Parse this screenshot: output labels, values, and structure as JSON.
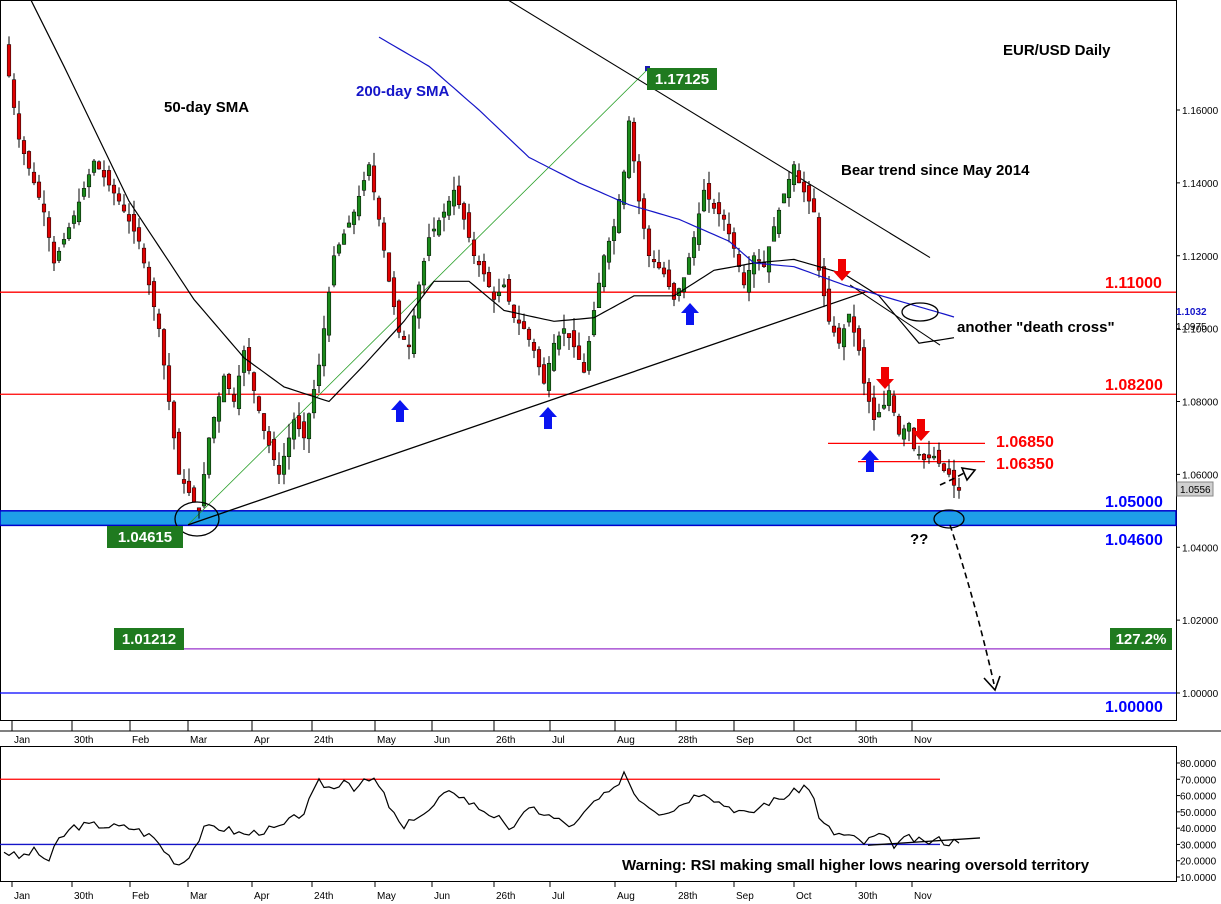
{
  "chart_data": [
    {
      "type": "candlestick",
      "title": "EUR/USD Daily",
      "annotations": {
        "sma50": "50-day SMA",
        "sma200": "200-day SMA",
        "bear_trend": "Bear trend since May 2014",
        "death_cross": "another \"death cross\"",
        "question": "??",
        "high_label": "1.17125",
        "low_label": "1.04615",
        "fib_left_label": "1.01212",
        "fib_right_label": "127.2%"
      },
      "levels": [
        {
          "value": 1.11,
          "label": "1.11000",
          "color": "#ff0000"
        },
        {
          "value": 1.082,
          "label": "1.08200",
          "color": "#ff0000"
        },
        {
          "value": 1.0685,
          "label": "1.06850",
          "color": "#ff0000"
        },
        {
          "value": 1.0635,
          "label": "1.06350",
          "color": "#ff0000"
        },
        {
          "value": 1.05,
          "label": "1.05000",
          "color": "#0000ff"
        },
        {
          "value": 1.046,
          "label": "1.04600",
          "color": "#0000ff"
        },
        {
          "value": 1.01212,
          "label": "",
          "color": "#9933cc"
        },
        {
          "value": 1.0,
          "label": "1.00000",
          "color": "#0000ff"
        }
      ],
      "price_labels": {
        "sma200_value": "1.1032",
        "sma50_value": "1.0975",
        "last_price": "1.0556"
      },
      "y_ticks": [
        "1.16000",
        "1.14000",
        "1.12000",
        "1.10000",
        "1.08000",
        "1.06000",
        "1.04000",
        "1.02000",
        "1.00000"
      ],
      "x_ticks": [
        "Jan",
        "30th",
        "Feb",
        "Mar",
        "Apr",
        "24th",
        "May",
        "Jun",
        "26th",
        "Jul",
        "Aug",
        "28th",
        "Sep",
        "Oct",
        "30th",
        "Nov"
      ],
      "ylim": [
        0.995,
        1.18
      ],
      "close_series_anchors": [
        [
          0,
          1.178
        ],
        [
          3,
          1.152
        ],
        [
          8,
          1.132
        ],
        [
          10,
          1.118
        ],
        [
          14,
          1.131
        ],
        [
          18,
          1.146
        ],
        [
          23,
          1.135
        ],
        [
          27,
          1.124
        ],
        [
          31,
          1.1
        ],
        [
          35,
          1.06
        ],
        [
          39,
          1.05
        ],
        [
          41,
          1.07
        ],
        [
          44,
          1.087
        ],
        [
          46,
          1.08
        ],
        [
          48,
          1.094
        ],
        [
          50,
          1.083
        ],
        [
          52,
          1.072
        ],
        [
          55,
          1.06
        ],
        [
          58,
          1.075
        ],
        [
          60,
          1.07
        ],
        [
          63,
          1.09
        ],
        [
          66,
          1.12
        ],
        [
          70,
          1.132
        ],
        [
          73,
          1.145
        ],
        [
          75,
          1.13
        ],
        [
          77,
          1.113
        ],
        [
          79,
          1.099
        ],
        [
          81,
          1.095
        ],
        [
          83,
          1.112
        ],
        [
          85,
          1.125
        ],
        [
          88,
          1.132
        ],
        [
          90,
          1.138
        ],
        [
          92,
          1.13
        ],
        [
          94,
          1.12
        ],
        [
          96,
          1.115
        ],
        [
          98,
          1.108
        ],
        [
          100,
          1.112
        ],
        [
          102,
          1.103
        ],
        [
          104,
          1.1
        ],
        [
          106,
          1.094
        ],
        [
          108,
          1.085
        ],
        [
          110,
          1.096
        ],
        [
          112,
          1.1
        ],
        [
          114,
          1.095
        ],
        [
          116,
          1.088
        ],
        [
          118,
          1.105
        ],
        [
          120,
          1.12
        ],
        [
          122,
          1.128
        ],
        [
          124,
          1.143
        ],
        [
          125,
          1.157
        ],
        [
          127,
          1.135
        ],
        [
          129,
          1.12
        ],
        [
          132,
          1.115
        ],
        [
          134,
          1.108
        ],
        [
          136,
          1.114
        ],
        [
          138,
          1.125
        ],
        [
          140,
          1.138
        ],
        [
          142,
          1.133
        ],
        [
          144,
          1.13
        ],
        [
          146,
          1.122
        ],
        [
          148,
          1.112
        ],
        [
          150,
          1.12
        ],
        [
          152,
          1.117
        ],
        [
          154,
          1.128
        ],
        [
          156,
          1.137
        ],
        [
          158,
          1.145
        ],
        [
          159,
          1.14
        ],
        [
          161,
          1.135
        ],
        [
          162,
          1.132
        ],
        [
          163,
          1.116
        ],
        [
          165,
          1.102
        ],
        [
          167,
          1.096
        ],
        [
          169,
          1.104
        ],
        [
          171,
          1.094
        ],
        [
          172,
          1.085
        ],
        [
          174,
          1.075
        ],
        [
          176,
          1.079
        ],
        [
          177,
          1.083
        ],
        [
          179,
          1.071
        ],
        [
          181,
          1.074
        ],
        [
          182,
          1.067
        ],
        [
          184,
          1.064
        ],
        [
          186,
          1.065
        ],
        [
          188,
          1.061
        ],
        [
          189,
          1.06
        ],
        [
          190,
          1.057
        ],
        [
          191,
          1.0556
        ]
      ],
      "sma50_anchors": [
        [
          0,
          1.205
        ],
        [
          12,
          1.172
        ],
        [
          25,
          1.135
        ],
        [
          38,
          1.108
        ],
        [
          48,
          1.092
        ],
        [
          56,
          1.084
        ],
        [
          65,
          1.08
        ],
        [
          72,
          1.09
        ],
        [
          80,
          1.102
        ],
        [
          86,
          1.113
        ],
        [
          93,
          1.113
        ],
        [
          100,
          1.105
        ],
        [
          110,
          1.102
        ],
        [
          118,
          1.103
        ],
        [
          126,
          1.109
        ],
        [
          134,
          1.109
        ],
        [
          142,
          1.116
        ],
        [
          150,
          1.118
        ],
        [
          158,
          1.119
        ],
        [
          163,
          1.117
        ],
        [
          168,
          1.115
        ],
        [
          175,
          1.109
        ],
        [
          183,
          1.096
        ],
        [
          190,
          1.0975
        ]
      ],
      "sma200_anchors": [
        [
          75,
          1.18
        ],
        [
          85,
          1.172
        ],
        [
          95,
          1.16
        ],
        [
          105,
          1.147
        ],
        [
          115,
          1.14
        ],
        [
          125,
          1.134
        ],
        [
          135,
          1.13
        ],
        [
          145,
          1.124
        ],
        [
          150,
          1.118
        ],
        [
          158,
          1.117
        ],
        [
          168,
          1.112
        ],
        [
          178,
          1.108
        ],
        [
          190,
          1.1032
        ]
      ],
      "rsi": {
        "ylim": [
          8,
          85
        ],
        "y_ticks": [
          "80.0000",
          "70.0000",
          "60.0000",
          "50.0000",
          "40.0000",
          "30.0000",
          "20.0000",
          "10.0000"
        ],
        "overbought": 70,
        "oversold": 30,
        "warning": "Warning: RSI making small higher lows nearing oversold territory",
        "anchors": [
          [
            0,
            26
          ],
          [
            3,
            22
          ],
          [
            6,
            26
          ],
          [
            9,
            20
          ],
          [
            11,
            33
          ],
          [
            14,
            41
          ],
          [
            18,
            42
          ],
          [
            22,
            41
          ],
          [
            26,
            40
          ],
          [
            30,
            34
          ],
          [
            33,
            23
          ],
          [
            35,
            18
          ],
          [
            36,
            20
          ],
          [
            38,
            28
          ],
          [
            40,
            39
          ],
          [
            42,
            41
          ],
          [
            45,
            39
          ],
          [
            48,
            36
          ],
          [
            51,
            38
          ],
          [
            55,
            40
          ],
          [
            60,
            50
          ],
          [
            63,
            68
          ],
          [
            66,
            64
          ],
          [
            68,
            71
          ],
          [
            70,
            65
          ],
          [
            72,
            68
          ],
          [
            74,
            70
          ],
          [
            76,
            60
          ],
          [
            78,
            48
          ],
          [
            80,
            39
          ],
          [
            82,
            47
          ],
          [
            85,
            50
          ],
          [
            87,
            58
          ],
          [
            90,
            63
          ],
          [
            93,
            56
          ],
          [
            96,
            51
          ],
          [
            99,
            46
          ],
          [
            101,
            37
          ],
          [
            103,
            47
          ],
          [
            106,
            52
          ],
          [
            110,
            46
          ],
          [
            114,
            41
          ],
          [
            118,
            56
          ],
          [
            122,
            63
          ],
          [
            124,
            75
          ],
          [
            126,
            62
          ],
          [
            128,
            56
          ],
          [
            131,
            50
          ],
          [
            134,
            52
          ],
          [
            137,
            58
          ],
          [
            140,
            63
          ],
          [
            143,
            56
          ],
          [
            146,
            52
          ],
          [
            149,
            48
          ],
          [
            152,
            55
          ],
          [
            155,
            58
          ],
          [
            158,
            62
          ],
          [
            160,
            66
          ],
          [
            162,
            60
          ],
          [
            163,
            45
          ],
          [
            166,
            37
          ],
          [
            169,
            35
          ],
          [
            172,
            31
          ],
          [
            175,
            36
          ],
          [
            178,
            30
          ],
          [
            181,
            34
          ],
          [
            184,
            31
          ],
          [
            187,
            33
          ],
          [
            189,
            31
          ],
          [
            191,
            33
          ]
        ]
      }
    }
  ]
}
